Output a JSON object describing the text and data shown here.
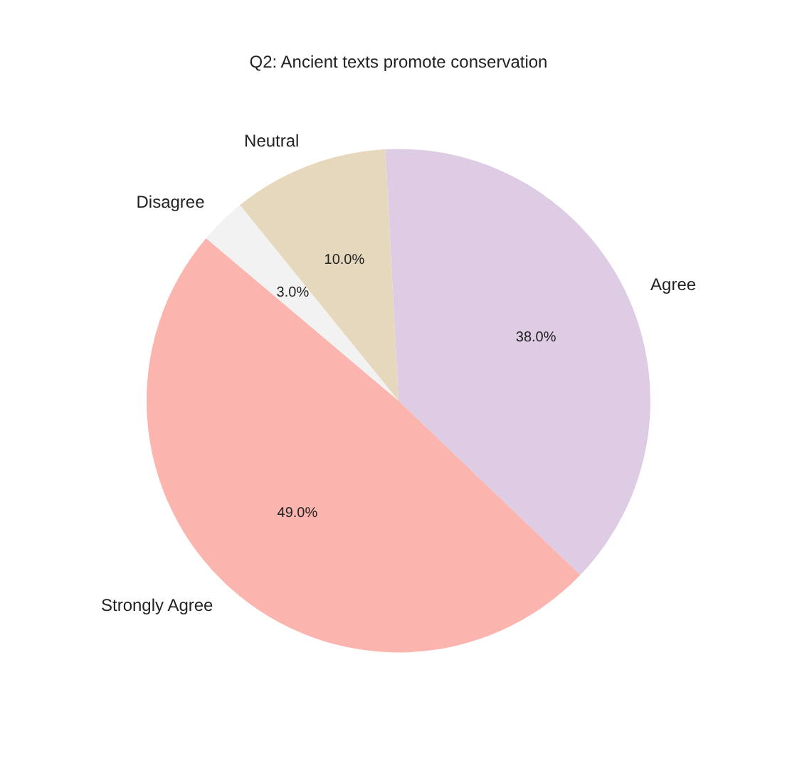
{
  "chart_data": {
    "type": "pie",
    "title": "Q2: Ancient texts promote conservation",
    "categories": [
      "Agree",
      "Strongly Agree",
      "Disagree",
      "Neutral"
    ],
    "values": [
      38,
      49,
      3,
      10
    ],
    "colors": [
      "#decbe4",
      "#fbb4ae",
      "#f2f2f2",
      "#e5d8bd"
    ],
    "value_labels": [
      "38.0%",
      "49.0%",
      "3.0%",
      "10.0%"
    ],
    "legend": false
  }
}
